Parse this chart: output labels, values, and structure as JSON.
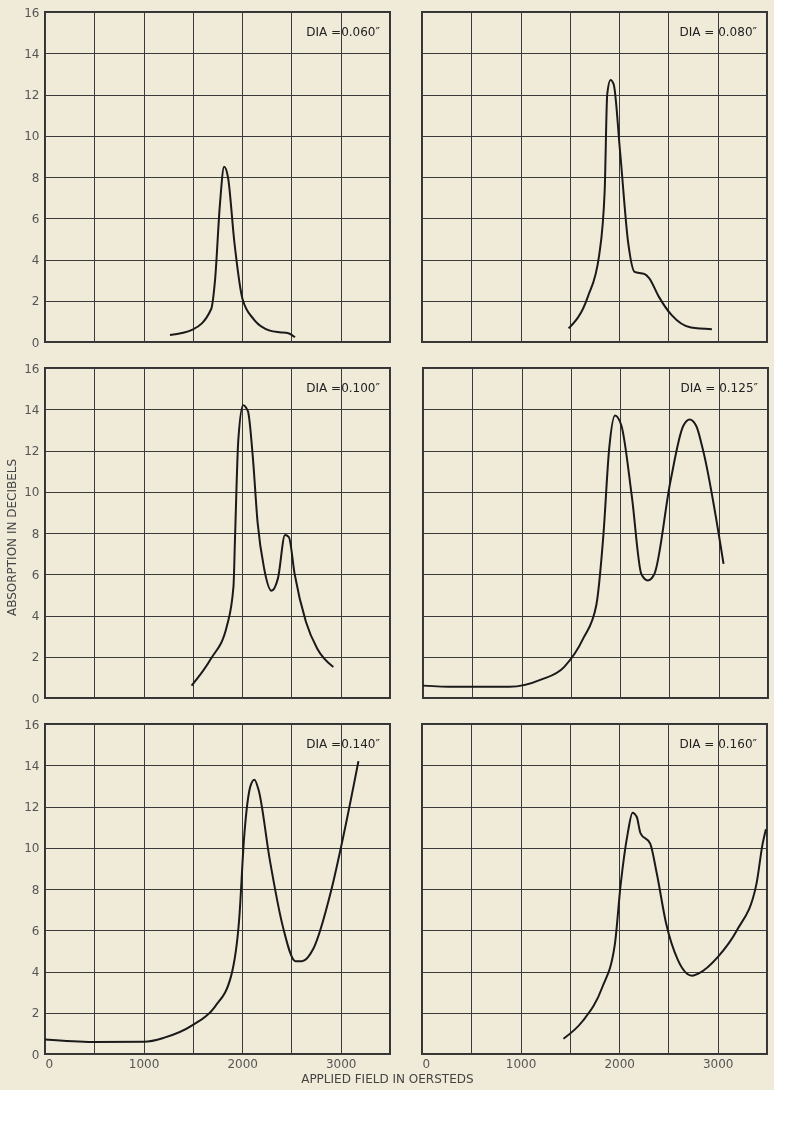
{
  "chart_data": [
    {
      "type": "line",
      "xlim": [
        0,
        3500
      ],
      "ylim": [
        0,
        16
      ],
      "xticks": [
        0,
        {
          "value": 500,
          "label": null
        },
        1000,
        {
          "value": 1500,
          "label": null
        },
        2000,
        {
          "value": 2500,
          "label": null
        },
        3000,
        {
          "value": 3500,
          "label": null
        }
      ],
      "yticks": [
        0,
        2,
        4,
        6,
        8,
        10,
        12,
        14,
        16
      ],
      "grid": true,
      "tick_labels": "y",
      "annotations": [
        "DIA =0.060″"
      ],
      "series": [
        {
          "color": "#1a1a1a",
          "x": [
            1268,
            1497,
            1686,
            1725,
            1775,
            1817,
            1856,
            1922,
            2003,
            2118,
            2281,
            2379,
            2461,
            2536
          ],
          "values": [
            0.34,
            0.6,
            1.6,
            3.0,
            6.7,
            8.5,
            8.0,
            4.8,
            2.1,
            1.1,
            0.55,
            0.47,
            0.44,
            0.23
          ]
        }
      ]
    },
    {
      "type": "line",
      "xlim": [
        0,
        3500
      ],
      "ylim": [
        0,
        16
      ],
      "xticks": [
        0,
        {
          "value": 500,
          "label": null
        },
        1000,
        {
          "value": 1500,
          "label": null
        },
        2000,
        {
          "value": 2500,
          "label": null
        },
        3000,
        {
          "value": 3500,
          "label": null
        }
      ],
      "yticks": [
        0,
        2,
        4,
        6,
        8,
        10,
        12,
        14,
        16
      ],
      "grid": true,
      "tick_labels": false,
      "annotations": [
        "DIA = 0.080″"
      ],
      "series": [
        {
          "color": "#1a1a1a",
          "x": [
            1487,
            1683,
            1797,
            1853,
            1879,
            1912,
            1944,
            2010,
            2092,
            2157,
            2255,
            2304,
            2402,
            2533,
            2729,
            2941
          ],
          "values": [
            0.66,
            2.2,
            4.2,
            7.3,
            12.0,
            12.7,
            12.5,
            9.2,
            4.8,
            3.4,
            3.3,
            3.1,
            2.2,
            1.3,
            0.7,
            0.62
          ]
        }
      ]
    },
    {
      "type": "line",
      "xlim": [
        0,
        3500
      ],
      "ylim": [
        0,
        16
      ],
      "xticks": [
        0,
        {
          "value": 500,
          "label": null
        },
        1000,
        {
          "value": 1500,
          "label": null
        },
        2000,
        {
          "value": 2500,
          "label": null
        },
        3000,
        {
          "value": 3500,
          "label": null
        }
      ],
      "yticks": [
        0,
        2,
        4,
        6,
        8,
        10,
        12,
        14,
        16
      ],
      "grid": true,
      "tick_labels": "y",
      "ylabel": "ABSORPTION IN DECIBELS",
      "annotations": [
        "DIA =0.100″"
      ],
      "series": [
        {
          "color": "#1a1a1a",
          "x": [
            1487,
            1683,
            1846,
            1912,
            1928,
            1961,
            2010,
            2059,
            2108,
            2157,
            2222,
            2297,
            2363,
            2435,
            2474,
            2533,
            2647,
            2761,
            2925
          ],
          "values": [
            0.6,
            1.9,
            3.5,
            5.4,
            7.8,
            12.5,
            14.2,
            13.9,
            11.7,
            8.5,
            6.3,
            5.2,
            5.8,
            7.9,
            7.8,
            6.0,
            3.7,
            2.4,
            1.5
          ]
        }
      ]
    },
    {
      "type": "line",
      "xlim": [
        0,
        3500
      ],
      "ylim": [
        0,
        16
      ],
      "xticks": [
        0,
        {
          "value": 500,
          "label": null
        },
        1000,
        {
          "value": 1500,
          "label": null
        },
        2000,
        {
          "value": 2500,
          "label": null
        },
        3000,
        {
          "value": 3500,
          "label": null
        }
      ],
      "yticks": [
        0,
        2,
        4,
        6,
        8,
        10,
        12,
        14,
        16
      ],
      "grid": true,
      "tick_labels": false,
      "annotations": [
        "DIA = 0.125″"
      ],
      "series": [
        {
          "color": "#1a1a1a",
          "x": [
            0,
            320,
            876,
            1203,
            1431,
            1627,
            1758,
            1830,
            1889,
            1948,
            2013,
            2118,
            2216,
            2281,
            2346,
            2510,
            2641,
            2706,
            2771,
            2837,
            3049
          ],
          "values": [
            0.6,
            0.54,
            0.54,
            0.9,
            1.5,
            2.9,
            4.5,
            7.9,
            12.1,
            13.7,
            13.2,
            9.8,
            6.0,
            5.7,
            6.0,
            10.5,
            13.2,
            13.5,
            13.2,
            12.1,
            6.5
          ]
        }
      ]
    },
    {
      "type": "line",
      "xlim": [
        0,
        3500
      ],
      "ylim": [
        0,
        16
      ],
      "xticks": [
        0,
        {
          "value": 500,
          "label": null
        },
        1000,
        {
          "value": 1500,
          "label": null
        },
        2000,
        {
          "value": 2500,
          "label": null
        },
        3000,
        {
          "value": 3500,
          "label": null
        }
      ],
      "yticks": [
        0,
        2,
        4,
        6,
        8,
        10,
        12,
        14,
        16
      ],
      "grid": true,
      "xlabel": "APPLIED FIELD IN OERSTEDS",
      "annotations": [
        "DIA =0.140″"
      ],
      "series": [
        {
          "color": "#1a1a1a",
          "x": [
            0,
            484,
            1007,
            1203,
            1497,
            1725,
            1889,
            1971,
            2020,
            2085,
            2124,
            2167,
            2281,
            2412,
            2542,
            2608,
            2722,
            2902,
            3033,
            3180
          ],
          "values": [
            0.7,
            0.58,
            0.59,
            0.78,
            1.4,
            2.3,
            3.8,
            6.6,
            10.5,
            13.0,
            13.3,
            12.8,
            9.4,
            6.2,
            4.5,
            4.5,
            5.1,
            7.9,
            10.7,
            14.2
          ]
        }
      ]
    },
    {
      "type": "line",
      "xlim": [
        0,
        3500
      ],
      "ylim": [
        0,
        16
      ],
      "xticks": [
        0,
        {
          "value": 500,
          "label": null
        },
        1000,
        {
          "value": 1500,
          "label": null
        },
        2000,
        {
          "value": 2500,
          "label": null
        },
        3000,
        {
          "value": 3500,
          "label": null
        }
      ],
      "yticks": [
        0,
        2,
        4,
        6,
        8,
        10,
        12,
        14,
        16
      ],
      "grid": true,
      "tick_labels": "x",
      "annotations": [
        "DIA = 0.160″"
      ],
      "series": [
        {
          "color": "#1a1a1a",
          "x": [
            1435,
            1630,
            1826,
            1956,
            2015,
            2087,
            2136,
            2178,
            2217,
            2315,
            2380,
            2478,
            2592,
            2739,
            2804,
            3000,
            3195,
            3391,
            3456,
            3489
          ],
          "values": [
            0.74,
            1.6,
            3.2,
            5.3,
            8.2,
            10.7,
            11.7,
            11.5,
            10.7,
            10.2,
            8.8,
            6.3,
            4.6,
            3.8,
            3.9,
            4.7,
            6.0,
            8.2,
            10.2,
            10.9
          ]
        }
      ]
    }
  ]
}
